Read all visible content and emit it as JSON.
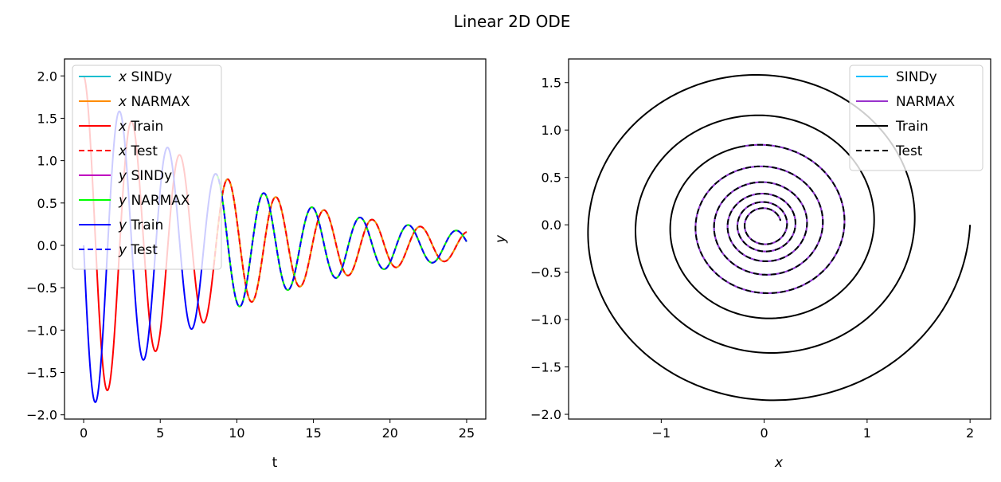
{
  "figure_title": "Linear 2D ODE",
  "chart_data": [
    {
      "type": "line",
      "title": "",
      "xlabel": "t",
      "ylabel": "",
      "xlim": [
        -1.25,
        26.25
      ],
      "ylim": [
        -2.05,
        2.2
      ],
      "xticks": [
        0,
        5,
        10,
        15,
        20,
        25
      ],
      "yticks": [
        -2.0,
        -1.5,
        -1.0,
        -0.5,
        0.0,
        0.5,
        1.0,
        1.5,
        2.0
      ],
      "ode": {
        "x0": 2.0,
        "y0": 0.0,
        "decay": 0.1,
        "omega": 2.0,
        "t_max": 25,
        "train_end": 8.5
      },
      "legend_position": "top-left",
      "series": [
        {
          "name": "x SINDy",
          "var": "x",
          "label": "SINDy",
          "color": "#17becf",
          "style": "solid",
          "segment": "test"
        },
        {
          "name": "x NARMAX",
          "var": "x",
          "label": "NARMAX",
          "color": "#ff8c00",
          "style": "solid",
          "segment": "test"
        },
        {
          "name": "x Train",
          "var": "x",
          "label": "Train",
          "color": "#ff0000",
          "style": "solid",
          "segment": "train"
        },
        {
          "name": "x Test",
          "var": "x",
          "label": "Test",
          "color": "#ff0000",
          "style": "dashed",
          "segment": "test"
        },
        {
          "name": "y SINDy",
          "var": "y",
          "label": "SINDy",
          "color": "#bf00bf",
          "style": "solid",
          "segment": "test"
        },
        {
          "name": "y NARMAX",
          "var": "y",
          "label": "NARMAX",
          "color": "#00ff00",
          "style": "solid",
          "segment": "test"
        },
        {
          "name": "y Train",
          "var": "y",
          "label": "Train",
          "color": "#0000ff",
          "style": "solid",
          "segment": "train"
        },
        {
          "name": "y Test",
          "var": "y",
          "label": "Test",
          "color": "#0000ff",
          "style": "dashed",
          "segment": "test"
        }
      ]
    },
    {
      "type": "line",
      "title": "",
      "xlabel": "x",
      "ylabel": "y",
      "xlim": [
        -1.9,
        2.2
      ],
      "ylim": [
        -2.05,
        1.75
      ],
      "xticks": [
        -1,
        0,
        1,
        2
      ],
      "yticks": [
        -2.0,
        -1.5,
        -1.0,
        -0.5,
        0.0,
        0.5,
        1.0,
        1.5
      ],
      "ode": {
        "x0": 2.0,
        "y0": 0.0,
        "decay": 0.1,
        "omega": 2.0,
        "t_max": 25,
        "train_end": 8.5
      },
      "legend_position": "top-right",
      "series": [
        {
          "name": "SINDy",
          "color": "#00bfff",
          "style": "solid",
          "segment": "test"
        },
        {
          "name": "NARMAX",
          "color": "#9932cc",
          "style": "solid",
          "segment": "test"
        },
        {
          "name": "Train",
          "color": "#000000",
          "style": "solid",
          "segment": "train"
        },
        {
          "name": "Test",
          "color": "#000000",
          "style": "dashed",
          "segment": "test"
        }
      ]
    }
  ]
}
